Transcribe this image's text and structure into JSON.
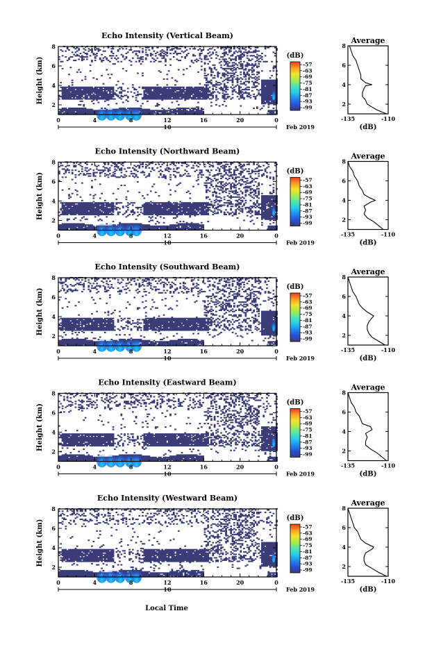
{
  "colors": {
    "background_low": "#3a3d78",
    "colormap": [
      "#3a3d78",
      "#2a4fd6",
      "#1f8cf0",
      "#29c9e8",
      "#50e6b0",
      "#a6ea4e",
      "#f2e32c",
      "#f9a126",
      "#ea3a22"
    ]
  },
  "shared": {
    "ylabel": "Height (km)",
    "xlabel_bottom": "Local Time",
    "date_label": "Feb 2019",
    "date_tick": "10",
    "cb_unit": "(dB)",
    "avg_title": "Average",
    "avg_xlabel": "(dB)"
  },
  "chart_data": [
    {
      "type": "heatmap",
      "title": "Echo Intensity (Vertical Beam)",
      "ylabel": "Height (km)",
      "x_ticks": [
        "0",
        "4",
        "8",
        "12",
        "16",
        "20",
        "0"
      ],
      "y_ticks": [
        "2",
        "4",
        "6",
        "8"
      ],
      "xlim": [
        0,
        24
      ],
      "ylim": [
        1,
        8
      ],
      "colorbar": {
        "unit": "(dB)",
        "ticks": [
          "-57",
          "-63",
          "-69",
          "-75",
          "-81",
          "-87",
          "-93",
          "-99"
        ]
      },
      "average_profile": {
        "title": "Average",
        "xlabel": "(dB)",
        "x_ticks": [
          "-135",
          "-110"
        ],
        "y_ticks": [
          "2",
          "4",
          "6",
          "8"
        ],
        "xlim": [
          -135,
          -110
        ],
        "ylim": [
          1,
          8
        ],
        "height": [
          1.0,
          1.4,
          1.8,
          2.0,
          2.4,
          2.8,
          3.2,
          3.6,
          3.9,
          4.0,
          4.2,
          4.6,
          5.0,
          5.5,
          6.0,
          6.5,
          7.0,
          7.5,
          8.0
        ],
        "value": [
          -111,
          -117,
          -121,
          -123,
          -124,
          -126,
          -126,
          -125,
          -124,
          -120,
          -124,
          -127,
          -127,
          -128,
          -129,
          -130,
          -132,
          -133,
          -134
        ]
      }
    },
    {
      "type": "heatmap",
      "title": "Echo Intensity (Northward Beam)",
      "ylabel": "Height (km)",
      "x_ticks": [
        "0",
        "4",
        "8",
        "12",
        "16",
        "20",
        "0"
      ],
      "y_ticks": [
        "2",
        "4",
        "6",
        "8"
      ],
      "xlim": [
        0,
        24
      ],
      "ylim": [
        1,
        8
      ],
      "colorbar": {
        "unit": "(dB)",
        "ticks": [
          "-57",
          "-63",
          "-69",
          "-75",
          "-81",
          "-87",
          "-93",
          "-99"
        ]
      },
      "average_profile": {
        "title": "Average",
        "xlabel": "(dB)",
        "x_ticks": [
          "-135",
          "-110"
        ],
        "y_ticks": [
          "2",
          "4",
          "6",
          "8"
        ],
        "xlim": [
          -135,
          -110
        ],
        "ylim": [
          1,
          8
        ],
        "height": [
          1.0,
          1.4,
          1.8,
          2.2,
          2.6,
          3.0,
          3.4,
          3.8,
          4.0,
          4.3,
          4.6,
          5.0,
          5.5,
          6.0,
          6.5,
          7.0,
          7.5,
          8.0
        ],
        "value": [
          -113,
          -116,
          -119,
          -123,
          -125,
          -124,
          -125,
          -121,
          -118,
          -122,
          -125,
          -126,
          -128,
          -129,
          -131,
          -132,
          -134,
          -135
        ]
      }
    },
    {
      "type": "heatmap",
      "title": "Echo Intensity (Southward Beam)",
      "ylabel": "Height (km)",
      "x_ticks": [
        "0",
        "4",
        "8",
        "12",
        "16",
        "20",
        "0"
      ],
      "y_ticks": [
        "2",
        "4",
        "6",
        "8"
      ],
      "xlim": [
        0,
        24
      ],
      "ylim": [
        1,
        8
      ],
      "colorbar": {
        "unit": "(dB)",
        "ticks": [
          "-57",
          "-63",
          "-69",
          "-75",
          "-81",
          "-87",
          "-93",
          "-99"
        ]
      },
      "average_profile": {
        "title": "Average",
        "xlabel": "(dB)",
        "x_ticks": [
          "-135",
          "-110"
        ],
        "y_ticks": [
          "2",
          "4",
          "6",
          "8"
        ],
        "xlim": [
          -135,
          -110
        ],
        "ylim": [
          1,
          8
        ],
        "height": [
          1.0,
          1.4,
          1.8,
          2.2,
          2.6,
          3.0,
          3.4,
          3.8,
          4.0,
          4.4,
          4.8,
          5.2,
          5.6,
          6.0,
          6.5,
          7.0,
          7.5,
          8.0
        ],
        "value": [
          -112,
          -116,
          -120,
          -122,
          -123,
          -123,
          -122,
          -120,
          -119,
          -123,
          -126,
          -128,
          -129,
          -130,
          -132,
          -133,
          -134,
          -135
        ]
      }
    },
    {
      "type": "heatmap",
      "title": "Echo Intensity (Eastward Beam)",
      "ylabel": "Height (km)",
      "x_ticks": [
        "0",
        "4",
        "8",
        "12",
        "16",
        "20",
        "0"
      ],
      "y_ticks": [
        "2",
        "4",
        "6",
        "8"
      ],
      "xlim": [
        0,
        24
      ],
      "ylim": [
        1,
        8
      ],
      "colorbar": {
        "unit": "(dB)",
        "ticks": [
          "-57",
          "-63",
          "-69",
          "-75",
          "-81",
          "-87",
          "-93",
          "-99"
        ]
      },
      "average_profile": {
        "title": "Average",
        "xlabel": "(dB)",
        "x_ticks": [
          "-135",
          "-110"
        ],
        "y_ticks": [
          "2",
          "4",
          "6",
          "8"
        ],
        "xlim": [
          -135,
          -110
        ],
        "ylim": [
          1,
          8
        ],
        "height": [
          1.0,
          1.4,
          1.8,
          2.2,
          2.6,
          3.0,
          3.4,
          3.8,
          4.2,
          4.5,
          4.8,
          5.2,
          5.6,
          6.0,
          6.5,
          7.0,
          7.5,
          8.0
        ],
        "value": [
          -111,
          -114,
          -117,
          -121,
          -124,
          -124,
          -123,
          -124,
          -120,
          -121,
          -126,
          -127,
          -128,
          -130,
          -131,
          -133,
          -134,
          -135
        ]
      }
    },
    {
      "type": "heatmap",
      "title": "Echo Intensity (Westward Beam)",
      "ylabel": "Height (km)",
      "x_ticks": [
        "0",
        "4",
        "8",
        "12",
        "16",
        "20",
        "0"
      ],
      "y_ticks": [
        "2",
        "4",
        "6",
        "8"
      ],
      "xlim": [
        0,
        24
      ],
      "ylim": [
        1,
        8
      ],
      "colorbar": {
        "unit": "(dB)",
        "ticks": [
          "-57",
          "-63",
          "-69",
          "-75",
          "-81",
          "-87",
          "-93",
          "-99"
        ]
      },
      "average_profile": {
        "title": "Average",
        "xlabel": "(dB)",
        "x_ticks": [
          "-135",
          "-110"
        ],
        "y_ticks": [
          "2",
          "4",
          "6",
          "8"
        ],
        "xlim": [
          -135,
          -110
        ],
        "ylim": [
          1,
          8
        ],
        "height": [
          1.0,
          1.4,
          1.8,
          2.2,
          2.6,
          3.0,
          3.4,
          3.8,
          4.0,
          4.4,
          4.8,
          5.2,
          5.6,
          6.0,
          6.5,
          7.0,
          7.5,
          8.0
        ],
        "value": [
          -111,
          -116,
          -120,
          -124,
          -125,
          -125,
          -124,
          -120,
          -119,
          -124,
          -127,
          -128,
          -129,
          -131,
          -132,
          -133,
          -134,
          -135
        ]
      }
    }
  ]
}
